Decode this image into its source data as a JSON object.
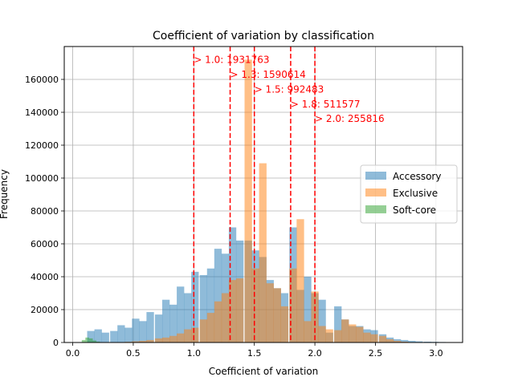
{
  "chart_data": {
    "type": "bar",
    "title": "Coefficient of variation by classification",
    "xlabel": "Coefficient of variation",
    "ylabel": "Frequency",
    "xlim": [
      -0.07,
      3.22
    ],
    "ylim": [
      0,
      180000
    ],
    "x_ticks": [
      0.0,
      0.5,
      1.0,
      1.5,
      2.0,
      2.5,
      3.0
    ],
    "x_tick_labels": [
      "0.0",
      "0.5",
      "1.0",
      "1.5",
      "2.0",
      "2.5",
      "3.0"
    ],
    "y_ticks": [
      0,
      20000,
      40000,
      60000,
      80000,
      100000,
      120000,
      140000,
      160000
    ],
    "y_tick_labels": [
      "0",
      "20000",
      "40000",
      "60000",
      "80000",
      "100000",
      "120000",
      "140000",
      "160000"
    ],
    "grid": true,
    "legend_position": "center-right",
    "bin_width": 0.0616,
    "series": [
      {
        "name": "Accessory",
        "color": "#1f77b4",
        "bins": [
          [
            0.15,
            7000
          ],
          [
            0.21,
            8000
          ],
          [
            0.27,
            6000
          ],
          [
            0.34,
            7000
          ],
          [
            0.4,
            10500
          ],
          [
            0.46,
            9000
          ],
          [
            0.52,
            14500
          ],
          [
            0.58,
            13000
          ],
          [
            0.64,
            18500
          ],
          [
            0.71,
            17000
          ],
          [
            0.77,
            26000
          ],
          [
            0.83,
            23000
          ],
          [
            0.89,
            34000
          ],
          [
            0.95,
            30000
          ],
          [
            1.01,
            43000
          ],
          [
            1.08,
            41000
          ],
          [
            1.14,
            45000
          ],
          [
            1.2,
            57000
          ],
          [
            1.26,
            54000
          ],
          [
            1.32,
            70000
          ],
          [
            1.38,
            62000
          ],
          [
            1.45,
            62000
          ],
          [
            1.51,
            56000
          ],
          [
            1.57,
            52000
          ],
          [
            1.63,
            38000
          ],
          [
            1.69,
            33000
          ],
          [
            1.75,
            30000
          ],
          [
            1.82,
            70000
          ],
          [
            1.88,
            32000
          ],
          [
            1.94,
            40000
          ],
          [
            2.0,
            30000
          ],
          [
            2.06,
            26000
          ],
          [
            2.12,
            6000
          ],
          [
            2.19,
            22000
          ],
          [
            2.25,
            14000
          ],
          [
            2.31,
            10000
          ],
          [
            2.37,
            10000
          ],
          [
            2.43,
            8000
          ],
          [
            2.49,
            7500
          ],
          [
            2.56,
            5000
          ],
          [
            2.62,
            3000
          ],
          [
            2.68,
            2000
          ],
          [
            2.74,
            1500
          ],
          [
            2.8,
            1000
          ],
          [
            2.86,
            700
          ],
          [
            2.93,
            500
          ],
          [
            2.99,
            400
          ],
          [
            3.05,
            300
          ]
        ]
      },
      {
        "name": "Exclusive",
        "color": "#ff7f0e",
        "bins": [
          [
            0.4,
            200
          ],
          [
            0.46,
            400
          ],
          [
            0.52,
            700
          ],
          [
            0.58,
            1000
          ],
          [
            0.64,
            1500
          ],
          [
            0.71,
            2500
          ],
          [
            0.77,
            3000
          ],
          [
            0.83,
            4000
          ],
          [
            0.89,
            5500
          ],
          [
            0.95,
            8000
          ],
          [
            1.01,
            9000
          ],
          [
            1.08,
            14000
          ],
          [
            1.14,
            18000
          ],
          [
            1.2,
            25000
          ],
          [
            1.26,
            30000
          ],
          [
            1.32,
            38000
          ],
          [
            1.38,
            39000
          ],
          [
            1.45,
            172000
          ],
          [
            1.51,
            45000
          ],
          [
            1.57,
            109000
          ],
          [
            1.63,
            36000
          ],
          [
            1.69,
            33000
          ],
          [
            1.75,
            22000
          ],
          [
            1.82,
            45000
          ],
          [
            1.88,
            75000
          ],
          [
            1.94,
            13000
          ],
          [
            2.0,
            31000
          ],
          [
            2.06,
            10000
          ],
          [
            2.12,
            8000
          ],
          [
            2.19,
            7500
          ],
          [
            2.25,
            14000
          ],
          [
            2.31,
            11000
          ],
          [
            2.37,
            9500
          ],
          [
            2.43,
            6000
          ],
          [
            2.49,
            5000
          ],
          [
            2.56,
            4000
          ],
          [
            2.62,
            2000
          ],
          [
            2.68,
            1000
          ],
          [
            2.74,
            500
          ]
        ]
      },
      {
        "name": "Soft-core",
        "color": "#2ca02c",
        "bins": [
          [
            0.09,
            1500
          ],
          [
            0.12,
            3000
          ],
          [
            0.15,
            2500
          ],
          [
            0.18,
            1200
          ],
          [
            0.21,
            500
          ]
        ]
      }
    ],
    "thresholds": [
      {
        "x": 1.0,
        "label": "> 1.0: 1931763",
        "y": 172000
      },
      {
        "x": 1.3,
        "label": "> 1.3: 1590614",
        "y": 163000
      },
      {
        "x": 1.5,
        "label": "> 1.5: 992483",
        "y": 154000
      },
      {
        "x": 1.8,
        "label": "> 1.8: 511577",
        "y": 145000
      },
      {
        "x": 2.0,
        "label": "> 2.0: 255816",
        "y": 136000
      }
    ],
    "threshold_color": "#ff0000"
  }
}
